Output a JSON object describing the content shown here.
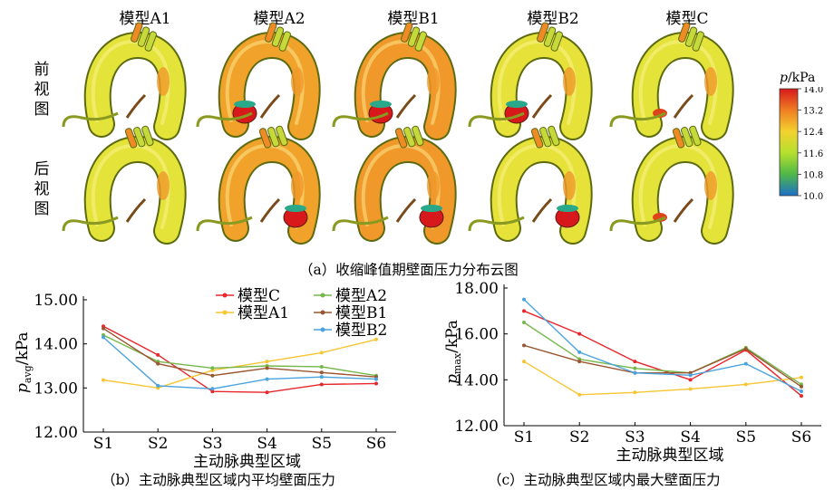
{
  "figure_a": {
    "models": [
      "模型A1",
      "模型A2",
      "模型B1",
      "模型B2",
      "模型C"
    ],
    "views": [
      "前视图",
      "后视图"
    ],
    "caption": "（a）收缩峰值期壁面压力分布云图",
    "colorbar": {
      "label": "p/kPa",
      "label_var": "p",
      "label_unit": "/kPa",
      "ticks": [
        "14.0",
        "13.2",
        "12.4",
        "11.6",
        "10.8",
        "10.0"
      ],
      "min": 10.0,
      "max": 14.0,
      "colors": [
        "#d7191c",
        "#f07e22",
        "#f2d22e",
        "#b5e02d",
        "#4fb848",
        "#1d6fc7"
      ]
    }
  },
  "chart_data": [
    {
      "type": "line",
      "ylabel": "p_avg/kPa",
      "ylabel_var": "p",
      "ylabel_sub": "avg",
      "ylabel_unit": "/kPa",
      "xlabel": "主动脉典型区域",
      "caption": "（b）主动脉典型区域内平均壁面压力",
      "categories": [
        "S1",
        "S2",
        "S3",
        "S4",
        "S5",
        "S6"
      ],
      "ylim": [
        12.0,
        15.0
      ],
      "yticks": [
        "12.00",
        "13.00",
        "14.00",
        "15.00"
      ],
      "legend_position": "top-right",
      "series": [
        {
          "name": "模型C",
          "color": "#e8262b",
          "values": [
            14.4,
            13.75,
            12.92,
            12.9,
            13.08,
            13.1
          ]
        },
        {
          "name": "模型A1",
          "color": "#f7c531",
          "values": [
            13.18,
            13.0,
            13.4,
            13.6,
            13.8,
            14.1
          ]
        },
        {
          "name": "模型A2",
          "color": "#76b74a",
          "values": [
            14.2,
            13.6,
            13.45,
            13.5,
            13.48,
            13.28
          ]
        },
        {
          "name": "模型B1",
          "color": "#9a5631",
          "values": [
            14.35,
            13.55,
            13.28,
            13.45,
            13.35,
            13.25
          ]
        },
        {
          "name": "模型B2",
          "color": "#4aa3df",
          "values": [
            14.15,
            13.05,
            12.98,
            13.2,
            13.25,
            13.2
          ]
        }
      ]
    },
    {
      "type": "line",
      "ylabel": "p_max/kPa",
      "ylabel_var": "p",
      "ylabel_sub": "max",
      "ylabel_unit": "/kPa",
      "xlabel": "主动脉典型区域",
      "caption": "（c）主动脉典型区域内最大壁面压力",
      "categories": [
        "S1",
        "S2",
        "S3",
        "S4",
        "S5",
        "S6"
      ],
      "ylim": [
        12.0,
        18.0
      ],
      "yticks": [
        "12.00",
        "14.00",
        "16.00",
        "18.00"
      ],
      "series": [
        {
          "name": "模型C",
          "color": "#e8262b",
          "values": [
            17.0,
            16.0,
            14.8,
            14.0,
            15.3,
            13.3
          ]
        },
        {
          "name": "模型A1",
          "color": "#f7c531",
          "values": [
            14.8,
            13.35,
            13.45,
            13.6,
            13.8,
            14.1
          ]
        },
        {
          "name": "模型A2",
          "color": "#76b74a",
          "values": [
            16.5,
            14.9,
            14.5,
            14.3,
            15.4,
            13.8
          ]
        },
        {
          "name": "模型B1",
          "color": "#9a5631",
          "values": [
            15.5,
            14.8,
            14.3,
            14.3,
            15.35,
            13.7
          ]
        },
        {
          "name": "模型B2",
          "color": "#4aa3df",
          "values": [
            17.5,
            15.2,
            14.3,
            14.2,
            14.7,
            13.5
          ]
        }
      ]
    }
  ]
}
